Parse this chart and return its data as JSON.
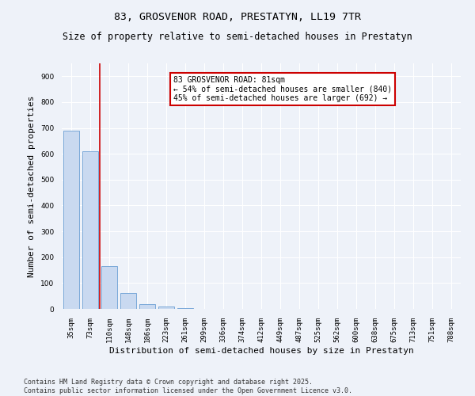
{
  "title_line1": "83, GROSVENOR ROAD, PRESTATYN, LL19 7TR",
  "title_line2": "Size of property relative to semi-detached houses in Prestatyn",
  "xlabel": "Distribution of semi-detached houses by size in Prestatyn",
  "ylabel": "Number of semi-detached properties",
  "categories": [
    "35sqm",
    "73sqm",
    "110sqm",
    "148sqm",
    "186sqm",
    "223sqm",
    "261sqm",
    "299sqm",
    "336sqm",
    "374sqm",
    "412sqm",
    "449sqm",
    "487sqm",
    "525sqm",
    "562sqm",
    "600sqm",
    "638sqm",
    "675sqm",
    "713sqm",
    "751sqm",
    "788sqm"
  ],
  "values": [
    690,
    610,
    165,
    60,
    18,
    8,
    2,
    0,
    0,
    0,
    0,
    0,
    0,
    0,
    0,
    0,
    0,
    0,
    0,
    0,
    0
  ],
  "bar_color": "#c9d9f0",
  "bar_edge_color": "#6b9fd4",
  "bar_width": 0.85,
  "vline_x": 1.5,
  "vline_color": "#cc0000",
  "annotation_text": "83 GROSVENOR ROAD: 81sqm\n← 54% of semi-detached houses are smaller (840)\n45% of semi-detached houses are larger (692) →",
  "annotation_box_color": "#ffffff",
  "annotation_box_edge": "#cc0000",
  "ylim": [
    0,
    950
  ],
  "yticks": [
    0,
    100,
    200,
    300,
    400,
    500,
    600,
    700,
    800,
    900
  ],
  "footnote": "Contains HM Land Registry data © Crown copyright and database right 2025.\nContains public sector information licensed under the Open Government Licence v3.0.",
  "bg_color": "#eef2f9",
  "plot_bg_color": "#eef2f9",
  "title_fontsize": 9.5,
  "subtitle_fontsize": 8.5,
  "tick_fontsize": 6.5,
  "label_fontsize": 8,
  "footnote_fontsize": 6,
  "annotation_fontsize": 7
}
